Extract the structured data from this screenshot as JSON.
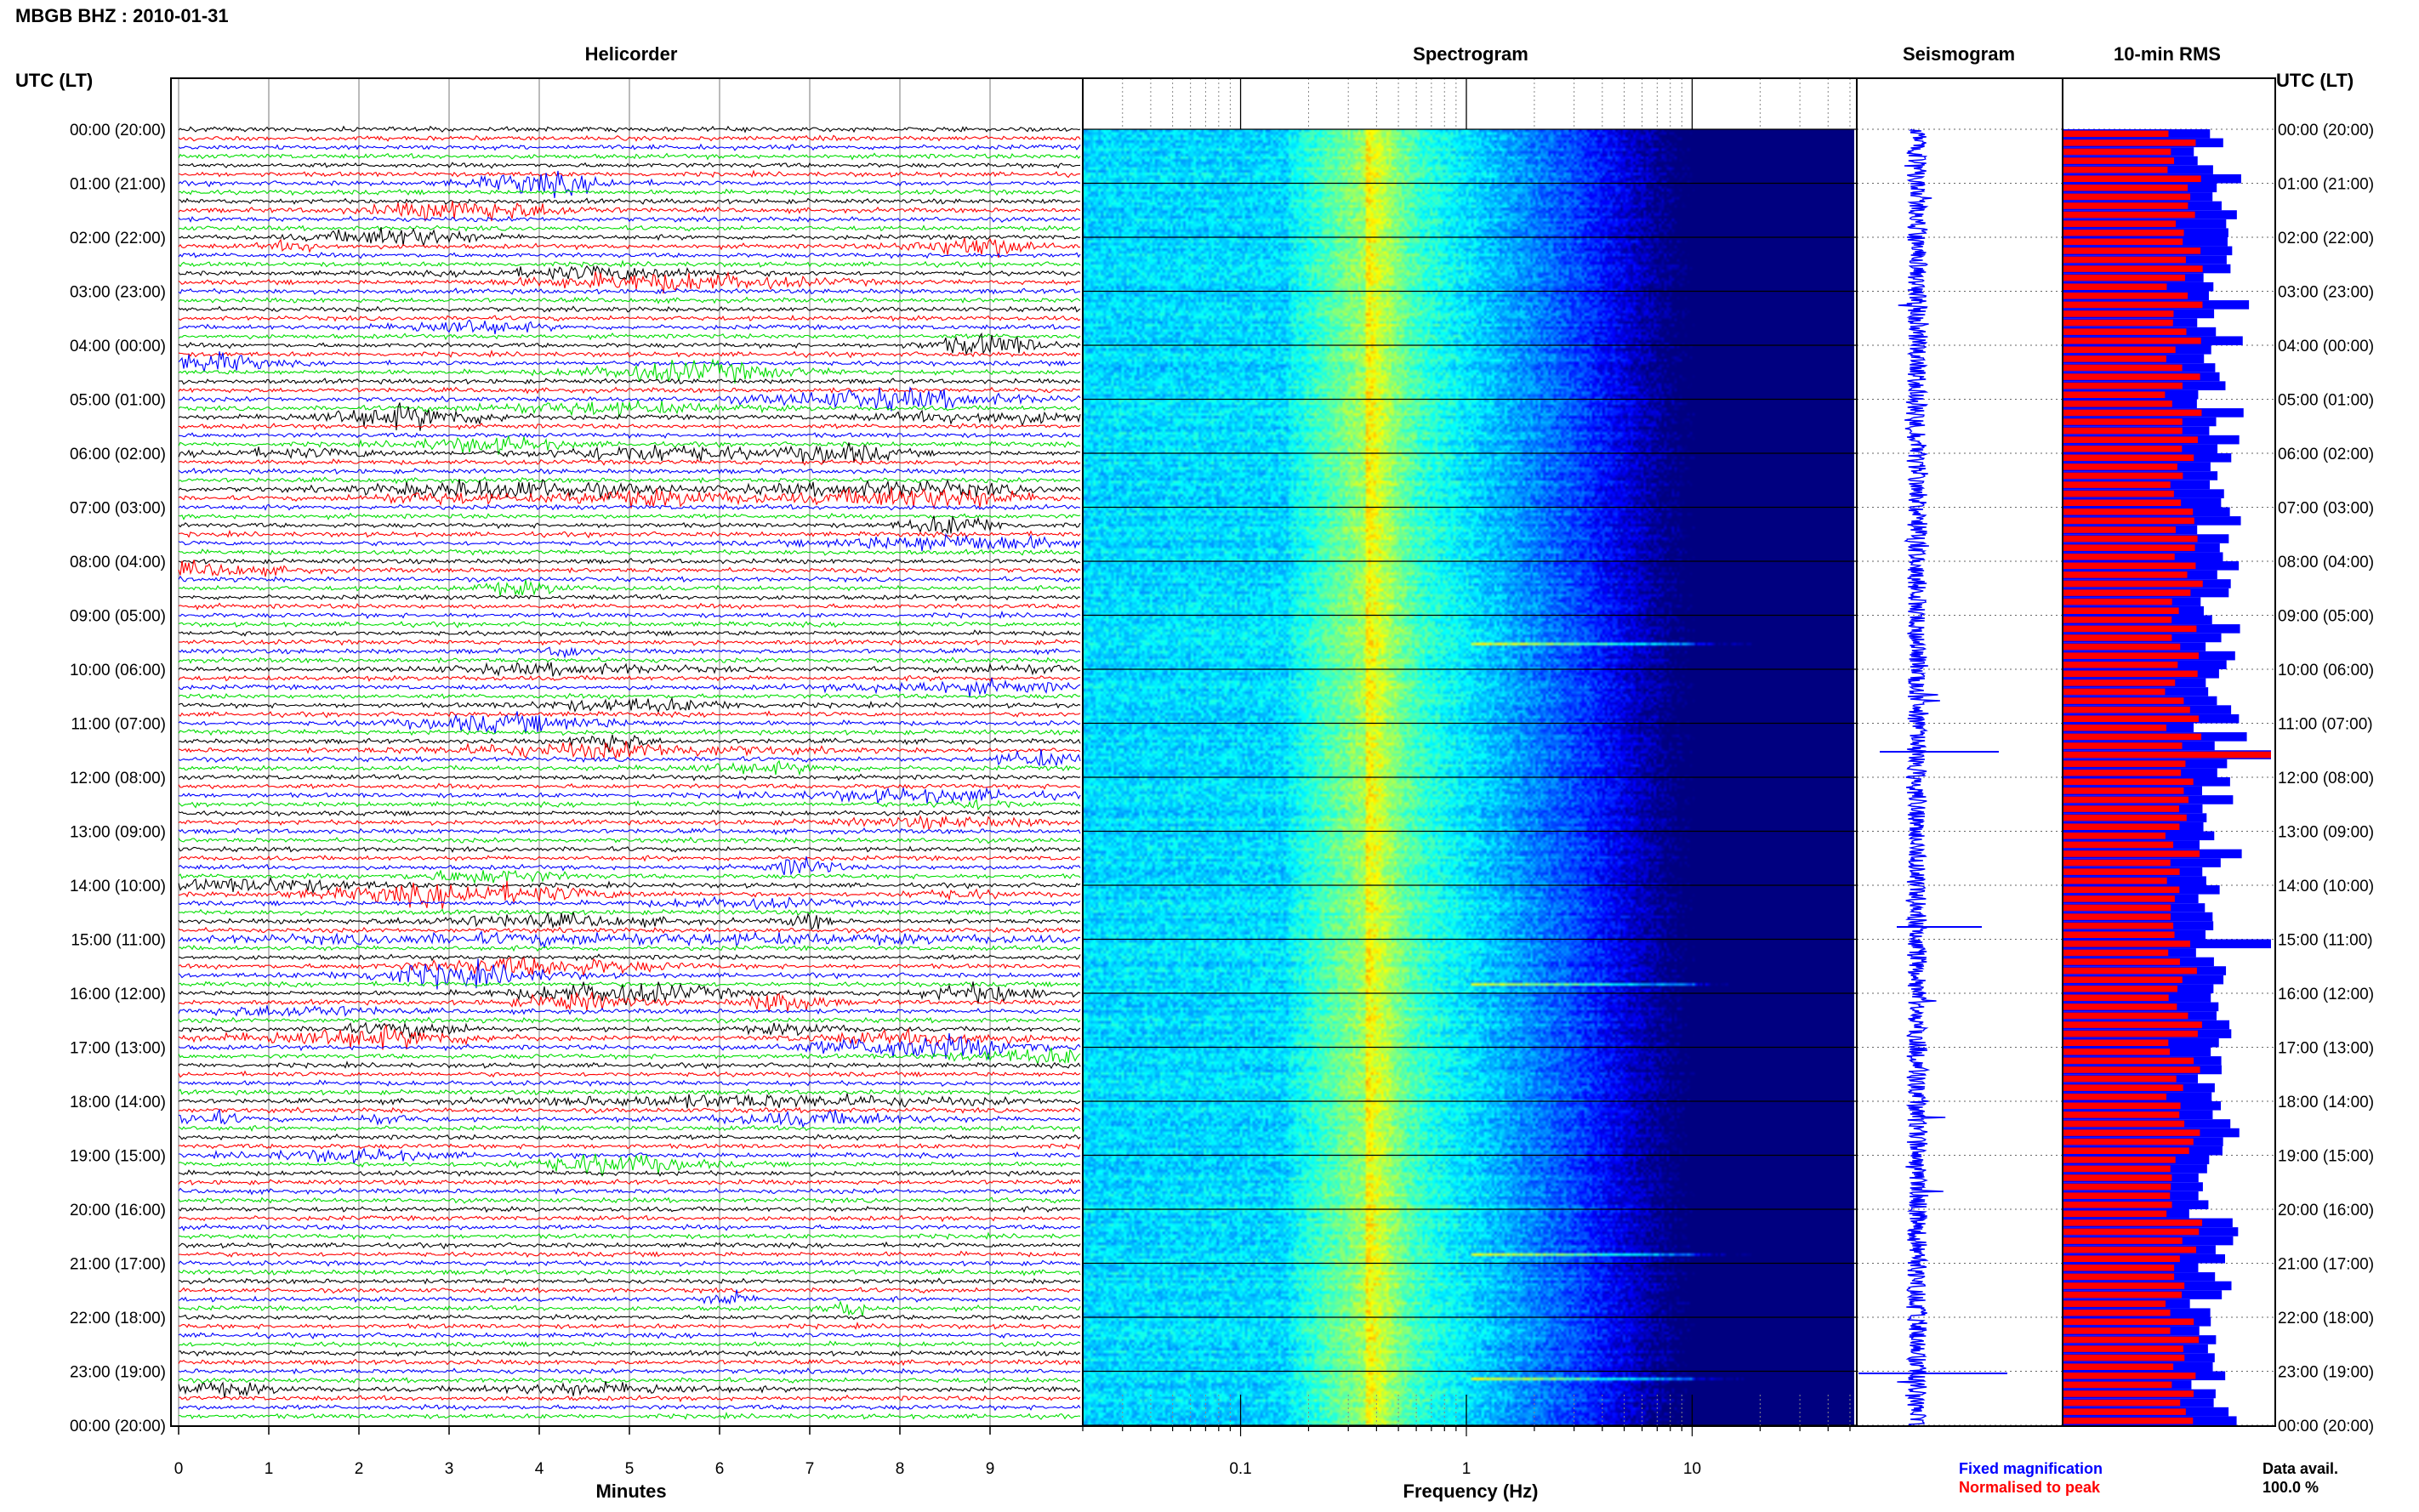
{
  "header": {
    "station_title": "MBGB BHZ : 2010-01-31",
    "utc_label_left": "UTC (LT)",
    "utc_label_right": "UTC (LT)"
  },
  "panels": {
    "helicorder_title": "Helicorder",
    "spectrogram_title": "Spectrogram",
    "seismogram_title": "Seismogram",
    "rms_title": "10-min RMS"
  },
  "time_labels": [
    "00:00 (20:00)",
    "01:00 (21:00)",
    "02:00 (22:00)",
    "03:00 (23:00)",
    "04:00 (00:00)",
    "05:00 (01:00)",
    "06:00 (02:00)",
    "07:00 (03:00)",
    "08:00 (04:00)",
    "09:00 (05:00)",
    "10:00 (06:00)",
    "11:00 (07:00)",
    "12:00 (08:00)",
    "13:00 (09:00)",
    "14:00 (10:00)",
    "15:00 (11:00)",
    "16:00 (12:00)",
    "17:00 (13:00)",
    "18:00 (14:00)",
    "19:00 (15:00)",
    "20:00 (16:00)",
    "21:00 (17:00)",
    "22:00 (18:00)",
    "23:00 (19:00)",
    "00:00 (20:00)"
  ],
  "footer": {
    "legend_fixed": "Fixed magnification",
    "legend_normalised": "Normalised to peak",
    "data_avail_label": "Data avail.",
    "data_avail_value": "100.0 %",
    "colors": {
      "fixed": "#0000ff",
      "normalised": "#ff0000"
    }
  },
  "chart_data": [
    {
      "type": "line",
      "panel": "helicorder",
      "title": "Helicorder",
      "xlabel": "Minutes",
      "xlim": [
        0,
        10
      ],
      "x_ticks": [
        0,
        1,
        2,
        3,
        4,
        5,
        6,
        7,
        8,
        9
      ],
      "rows_per_hour": 6,
      "trace_colors": [
        "#000000",
        "#ff0000",
        "#0000ff",
        "#00dd00"
      ]
    },
    {
      "type": "heatmap",
      "panel": "spectrogram",
      "title": "Spectrogram",
      "xlabel": "Frequency (Hz)",
      "x_scale": "log",
      "xlim": [
        0.02,
        50
      ],
      "x_tick_labels": [
        "0.1",
        "1",
        "10"
      ],
      "x_tick_values": [
        0.1,
        1,
        10
      ]
    },
    {
      "type": "line",
      "panel": "seismogram",
      "title": "Seismogram"
    },
    {
      "type": "bar",
      "panel": "rms",
      "title": "10-min RMS",
      "series": [
        {
          "name": "Fixed magnification",
          "color": "#0000ff"
        },
        {
          "name": "Normalised to peak",
          "color": "#ff0000"
        }
      ]
    }
  ]
}
